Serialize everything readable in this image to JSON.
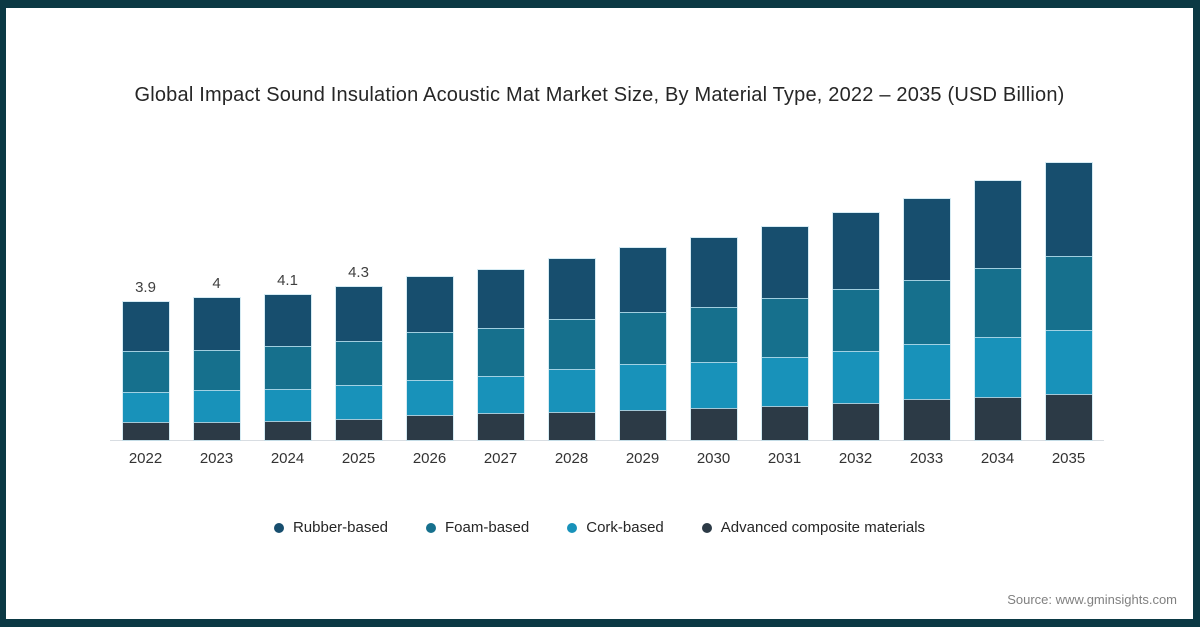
{
  "source_text": "Source: www.gminsights.com",
  "frame_color": "#0b3944",
  "chart_data": {
    "type": "bar",
    "stacked": true,
    "title": "Global Impact Sound Insulation Acoustic Mat Market Size, By Material Type, 2022 – 2035 (USD Billion)",
    "xlabel": "",
    "ylabel": "",
    "ylim": [
      0,
      8.5
    ],
    "grid": false,
    "legend_position": "bottom",
    "categories": [
      "2022",
      "2023",
      "2024",
      "2025",
      "2026",
      "2027",
      "2028",
      "2029",
      "2030",
      "2031",
      "2032",
      "2033",
      "2034",
      "2035"
    ],
    "series": [
      {
        "name": "Rubber-based",
        "color": "#174e6e",
        "values": [
          1.4,
          1.45,
          1.45,
          1.5,
          1.55,
          1.65,
          1.7,
          1.8,
          1.95,
          2.0,
          2.15,
          2.3,
          2.45,
          2.6
        ]
      },
      {
        "name": "Foam-based",
        "color": "#16708d",
        "values": [
          1.15,
          1.15,
          1.2,
          1.25,
          1.35,
          1.35,
          1.4,
          1.45,
          1.55,
          1.65,
          1.75,
          1.8,
          1.95,
          2.1
        ]
      },
      {
        "name": "Cork-based",
        "color": "#1892ba",
        "values": [
          0.85,
          0.9,
          0.9,
          0.95,
          1.0,
          1.05,
          1.2,
          1.3,
          1.3,
          1.4,
          1.45,
          1.55,
          1.7,
          1.8
        ]
      },
      {
        "name": "Advanced composite materials",
        "color": "#2c3a46",
        "values": [
          0.5,
          0.5,
          0.55,
          0.6,
          0.7,
          0.75,
          0.8,
          0.85,
          0.9,
          0.95,
          1.05,
          1.15,
          1.2,
          1.3
        ]
      }
    ],
    "totals": [
      3.9,
      4.0,
      4.1,
      4.3,
      4.6,
      4.8,
      5.1,
      5.4,
      5.7,
      6.0,
      6.4,
      6.8,
      7.3,
      7.8
    ],
    "total_labels": [
      "3.9",
      "4",
      "4.1",
      "4.3",
      "",
      "",
      "",
      "",
      "",
      "",
      "",
      "",
      "",
      ""
    ]
  }
}
